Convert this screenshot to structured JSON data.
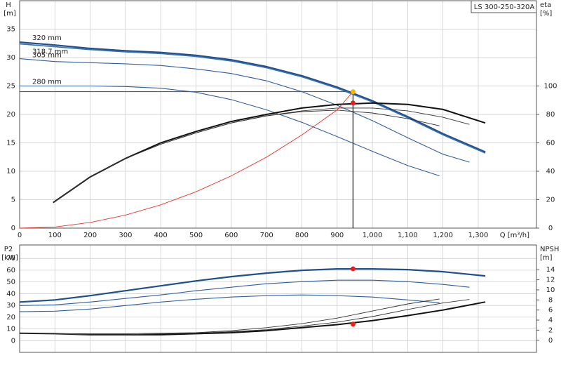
{
  "chart_data": [
    {
      "type": "line",
      "badge": "LS 300-250-320A",
      "y_label": "H",
      "y_unit": "[m]",
      "y2_label": "eta",
      "y2_unit": "[%]",
      "x_label": "Q [m³/h]",
      "xlim": [
        0,
        1465
      ],
      "ylim": [
        0,
        40
      ],
      "y2lim": [
        0,
        160
      ],
      "grid": true,
      "xticks": [
        0,
        100,
        200,
        300,
        400,
        500,
        600,
        700,
        800,
        900,
        {
          "value": 1000,
          "label": "1,000"
        },
        {
          "value": 1100,
          "label": "1,100"
        },
        {
          "value": 1200,
          "label": "1,200"
        },
        {
          "value": 1300,
          "label": "1,300"
        }
      ],
      "yticks": [
        0,
        5,
        10,
        15,
        20,
        25,
        30,
        35
      ],
      "y2ticks": [
        0,
        20,
        40,
        60,
        80,
        100
      ],
      "series": [
        {
          "name": "320 mm",
          "color": "#1f4f8f",
          "width": 2.2,
          "axis": "y",
          "x": [
            0,
            100,
            200,
            300,
            400,
            500,
            600,
            700,
            800,
            900,
            1000,
            1100,
            1200,
            1320
          ],
          "values": [
            32.7,
            32.2,
            31.6,
            31.2,
            30.9,
            30.4,
            29.6,
            28.4,
            26.8,
            24.8,
            22.4,
            19.6,
            16.6,
            13.4
          ]
        },
        {
          "name": "318.7 mm",
          "color": "#3a6fb0",
          "width": 1.6,
          "axis": "y",
          "x": [
            0,
            100,
            200,
            300,
            400,
            500,
            600,
            700,
            800,
            900,
            1000,
            1100,
            1200,
            1320
          ],
          "values": [
            32.4,
            31.9,
            31.4,
            31.0,
            30.7,
            30.2,
            29.4,
            28.2,
            26.6,
            24.6,
            22.2,
            19.4,
            16.4,
            13.2
          ]
        },
        {
          "name": "305 mm",
          "color": "#2f5f9f",
          "width": 1.1,
          "axis": "y",
          "x": [
            0,
            100,
            200,
            300,
            400,
            500,
            600,
            700,
            800,
            900,
            1000,
            1100,
            1200,
            1275
          ],
          "values": [
            29.8,
            29.3,
            29.1,
            28.9,
            28.6,
            28.0,
            27.2,
            25.9,
            24.0,
            21.6,
            18.9,
            15.9,
            13.0,
            11.6
          ]
        },
        {
          "name": "280 mm",
          "color": "#2f5f9f",
          "width": 1.1,
          "axis": "y",
          "x": [
            0,
            100,
            200,
            300,
            400,
            500,
            600,
            700,
            800,
            900,
            1000,
            1100,
            1190
          ],
          "values": [
            25,
            25,
            25,
            24.9,
            24.6,
            23.9,
            22.6,
            20.8,
            18.6,
            16.1,
            13.5,
            11.0,
            9.2
          ]
        },
        {
          "color": "#111111",
          "width": 2,
          "axis": "y2",
          "x": [
            95,
            200,
            300,
            400,
            500,
            600,
            700,
            800,
            900,
            1000,
            1100,
            1200,
            1320
          ],
          "values": [
            18,
            36,
            49,
            60,
            68,
            75,
            80,
            84.5,
            87,
            88,
            87,
            83.5,
            74
          ]
        },
        {
          "color": "#333333",
          "width": 0.9,
          "axis": "y2",
          "x": [
            95,
            200,
            300,
            400,
            500,
            600,
            700,
            800,
            900,
            1000,
            1100,
            1200,
            1275
          ],
          "values": [
            18,
            36,
            49,
            59,
            67,
            74,
            79,
            82.5,
            84.5,
            84.5,
            82.5,
            78,
            73
          ]
        },
        {
          "color": "#333333",
          "width": 0.9,
          "axis": "y2",
          "x": [
            95,
            200,
            300,
            400,
            500,
            600,
            700,
            800,
            900,
            1000,
            1100,
            1190
          ],
          "values": [
            18,
            36,
            49,
            59,
            67,
            74,
            79,
            82,
            83,
            81,
            77,
            72
          ]
        },
        {
          "color": "#e8352a",
          "width": 0.9,
          "axis": "y",
          "x": [
            0,
            100,
            200,
            300,
            400,
            500,
            600,
            700,
            800,
            900,
            945
          ],
          "values": [
            0,
            0.2,
            1.0,
            2.3,
            4.1,
            6.4,
            9.2,
            12.5,
            16.4,
            20.8,
            24
          ]
        }
      ],
      "markers": [
        {
          "x": 945,
          "y": 24,
          "axis": "y",
          "color": "#f5b800"
        },
        {
          "x": 945,
          "y": 88,
          "axis": "y2",
          "color": "#e8201a"
        }
      ]
    },
    {
      "type": "line",
      "y_label": "P2",
      "y_unit": "[kW]",
      "y2_label": "NPSH",
      "y2_unit": "[m]",
      "xlim": [
        0,
        1465
      ],
      "ylim": [
        -10,
        81.5
      ],
      "y2lim": [
        -2.4,
        18.9
      ],
      "grid": true,
      "xticks": [
        0,
        100,
        200,
        300,
        400,
        500,
        600,
        700,
        800,
        900,
        1000,
        1100,
        1200,
        1300
      ],
      "yticks": [
        0,
        10,
        20,
        30,
        40,
        50,
        60,
        70
      ],
      "y2ticks": [
        0,
        2,
        4,
        6,
        8,
        10,
        12,
        14
      ],
      "series": [
        {
          "color": "#1f4f8f",
          "width": 2.2,
          "axis": "y",
          "x": [
            0,
            100,
            200,
            300,
            400,
            500,
            600,
            700,
            800,
            900,
            1000,
            1100,
            1200,
            1320
          ],
          "values": [
            32.9,
            34.7,
            38.3,
            42.5,
            46.7,
            50.9,
            54.5,
            57.5,
            59.9,
            61.1,
            61.1,
            60.5,
            58.7,
            55.1
          ]
        },
        {
          "color": "#2f5f9f",
          "width": 1.1,
          "axis": "y",
          "x": [
            0,
            100,
            200,
            300,
            400,
            500,
            600,
            700,
            800,
            900,
            1000,
            1100,
            1200,
            1275
          ],
          "values": [
            29.9,
            30.5,
            32.9,
            35.9,
            38.9,
            42.5,
            45.5,
            48.5,
            50.3,
            51.5,
            51.5,
            50.3,
            47.9,
            45.5
          ]
        },
        {
          "color": "#2f5f9f",
          "width": 1.1,
          "axis": "y",
          "x": [
            0,
            100,
            200,
            300,
            400,
            500,
            600,
            700,
            800,
            900,
            1000,
            1100,
            1190
          ],
          "values": [
            24.6,
            25.1,
            26.9,
            29.9,
            32.9,
            35.3,
            37.1,
            38.3,
            38.9,
            38.3,
            37.1,
            34.7,
            32.3
          ]
        },
        {
          "color": "#111111",
          "width": 2,
          "axis": "y2",
          "x": [
            0,
            100,
            200,
            300,
            400,
            500,
            600,
            700,
            800,
            900,
            1000,
            1100,
            1200,
            1320
          ],
          "values": [
            1.4,
            1.3,
            1.1,
            1.1,
            1.1,
            1.3,
            1.5,
            1.9,
            2.5,
            3.1,
            3.9,
            4.9,
            6.0,
            7.6
          ]
        },
        {
          "color": "#333333",
          "width": 0.9,
          "axis": "y2",
          "x": [
            0,
            100,
            200,
            300,
            400,
            500,
            600,
            700,
            800,
            900,
            1000,
            1100,
            1200,
            1275
          ],
          "values": [
            1.4,
            1.3,
            1.1,
            1.1,
            1.3,
            1.4,
            1.7,
            2.1,
            2.8,
            3.6,
            4.7,
            6.1,
            7.4,
            8.1
          ]
        },
        {
          "color": "#333333",
          "width": 0.9,
          "axis": "y2",
          "x": [
            0,
            100,
            200,
            300,
            400,
            500,
            600,
            700,
            800,
            900,
            1000,
            1100,
            1190
          ],
          "values": [
            1.4,
            1.3,
            1.3,
            1.3,
            1.4,
            1.5,
            1.9,
            2.5,
            3.3,
            4.4,
            5.8,
            7.2,
            8.2
          ]
        }
      ],
      "markers": [
        {
          "x": 945,
          "y": 61.2,
          "axis": "y",
          "color": "#e8201a"
        },
        {
          "x": 945,
          "y": 3.2,
          "axis": "y2",
          "color": "#e8201a"
        }
      ]
    }
  ]
}
